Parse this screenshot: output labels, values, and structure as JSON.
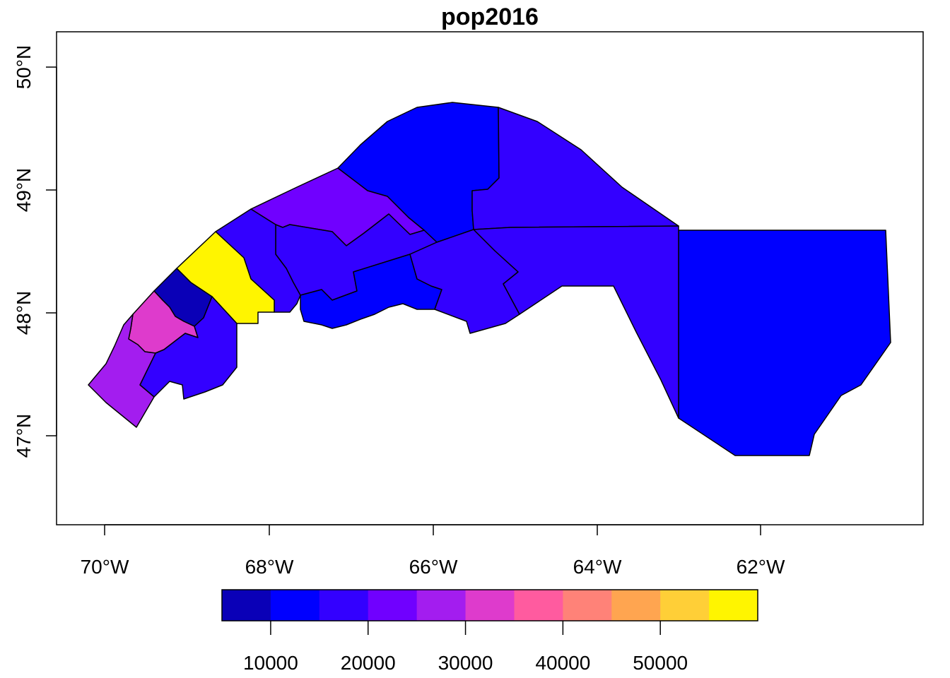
{
  "title": "pop2016",
  "x_axis": {
    "ticks": [
      "70°W",
      "68°W",
      "66°W",
      "64°W",
      "62°W"
    ]
  },
  "y_axis": {
    "ticks": [
      "47°N",
      "48°N",
      "49°N",
      "50°N"
    ]
  },
  "legend": {
    "ticks": [
      "10000",
      "20000",
      "30000",
      "40000",
      "50000"
    ],
    "colors": [
      "#0A00B7",
      "#0000FF",
      "#3300FF",
      "#7000FF",
      "#A31DEF",
      "#DE3BCC",
      "#FF5B9F",
      "#FF8278",
      "#FFA550",
      "#FFCF37",
      "#FFF500"
    ]
  },
  "colors": {
    "dark_navy": "#0A00B7",
    "blue": "#0000FF",
    "indigo": "#3300FF",
    "violet": "#7000FF",
    "purple": "#A31DEF",
    "magenta": "#DE3BCC",
    "yellow": "#FFF500"
  }
}
